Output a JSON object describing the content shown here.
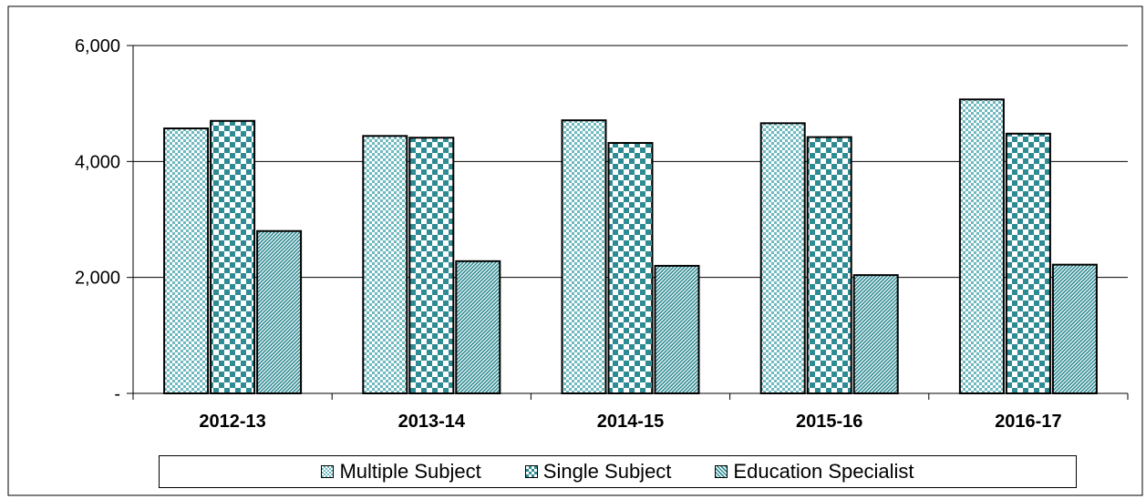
{
  "chart_data": {
    "type": "bar",
    "title": "",
    "xlabel": "",
    "ylabel": "",
    "categories": [
      "2012-13",
      "2013-14",
      "2014-15",
      "2015-16",
      "2016-17"
    ],
    "series": [
      {
        "name": "Multiple Subject",
        "values": [
          4570,
          4440,
          4710,
          4660,
          5070
        ],
        "color": "#6fb9bf",
        "pattern": "fine-checker"
      },
      {
        "name": "Single Subject",
        "values": [
          4700,
          4410,
          4320,
          4420,
          4480
        ],
        "color": "#2e8b93",
        "pattern": "large-checker"
      },
      {
        "name": "Education Specialist",
        "values": [
          2800,
          2280,
          2200,
          2040,
          2220
        ],
        "color": "#2e8b93",
        "pattern": "diagonal"
      }
    ],
    "ylim": [
      0,
      6000
    ],
    "yticks": [
      0,
      2000,
      4000,
      6000
    ],
    "ytick_labels": [
      "-",
      "2,000",
      "4,000",
      "6,000"
    ],
    "grid": true,
    "legend_position": "bottom"
  }
}
